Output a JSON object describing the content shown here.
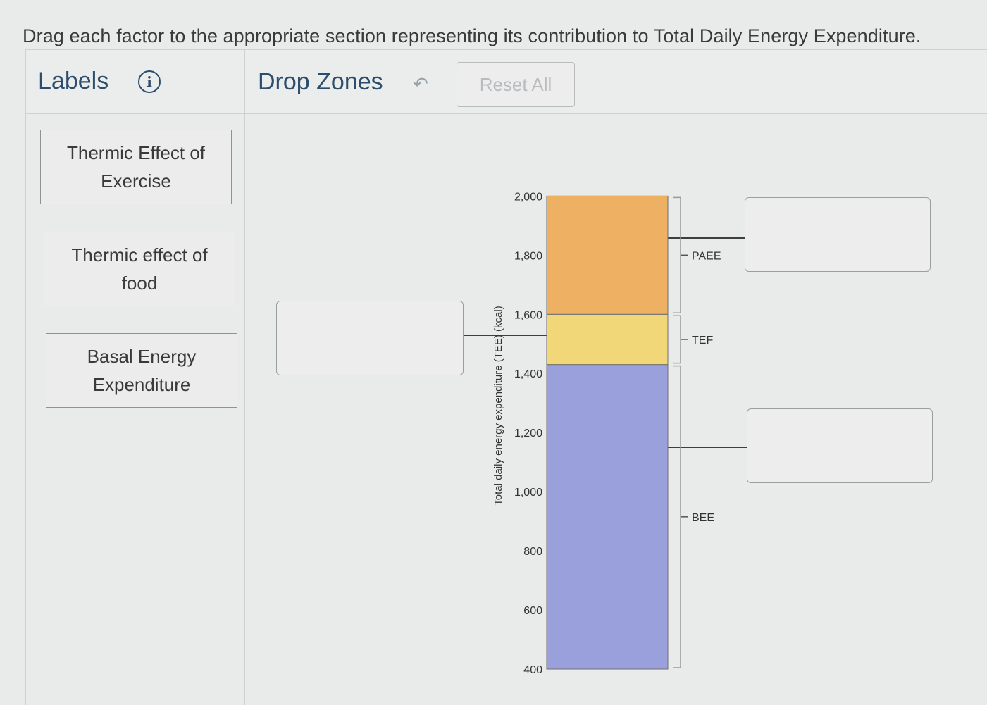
{
  "instruction": "Drag each factor to the appropriate section representing its contribution to Total Daily Energy Expenditure.",
  "labels_panel": {
    "title": "Labels",
    "info_icon": "info-icon"
  },
  "dropzones_panel": {
    "title": "Drop Zones",
    "undo_icon": "undo-arrow-icon",
    "reset_label": "Reset All"
  },
  "label_cards": [
    {
      "lines": [
        "Thermic Effect of",
        "Exercise"
      ]
    },
    {
      "lines": [
        "Thermic effect of",
        "food"
      ]
    },
    {
      "lines": [
        "Basal Energy",
        "Expenditure"
      ]
    }
  ],
  "chart_data": {
    "type": "bar",
    "ylabel": "Total daily energy expenditure (TEE) (kcal)",
    "y_ticks": [
      "2,000",
      "1,800",
      "1,600",
      "1,400",
      "1,200",
      "1,000",
      "800",
      "600",
      "400"
    ],
    "ylim": [
      400,
      2000
    ],
    "stack": [
      {
        "name": "BEE",
        "from": 400,
        "to": 1430,
        "color": "#9aa0dc"
      },
      {
        "name": "TEF",
        "from": 1430,
        "to": 1600,
        "color": "#f2d779"
      },
      {
        "name": "PAEE",
        "from": 1600,
        "to": 2000,
        "color": "#eeb062"
      }
    ]
  }
}
